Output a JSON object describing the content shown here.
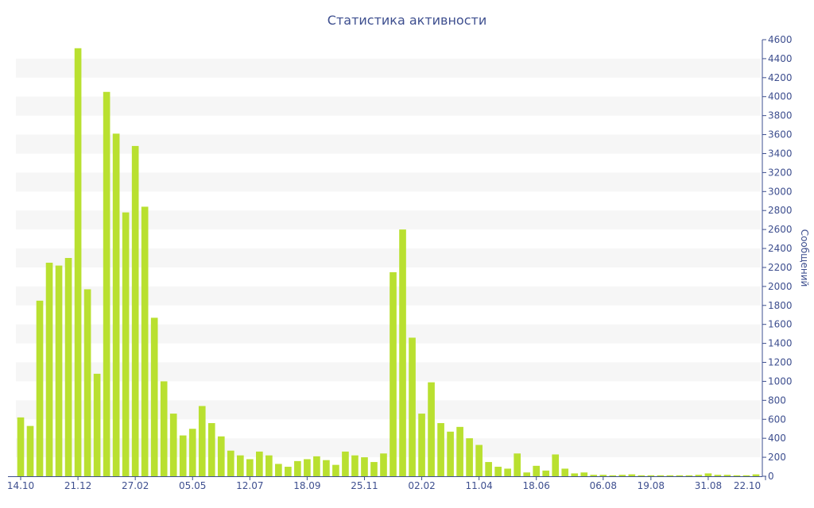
{
  "chart_data": {
    "type": "bar",
    "title": "Статистика активности",
    "xlabel": "",
    "ylabel": "Сообщений",
    "ylim": [
      0,
      4600
    ],
    "yticks": [
      0,
      200,
      400,
      600,
      800,
      1000,
      1200,
      1400,
      1600,
      1800,
      2000,
      2200,
      2400,
      2600,
      2800,
      3000,
      3200,
      3400,
      3600,
      3800,
      4000,
      4200,
      4400,
      4600
    ],
    "x_tick_labels": [
      {
        "label": "14.10",
        "index": 0
      },
      {
        "label": "21.12",
        "index": 6
      },
      {
        "label": "27.02",
        "index": 12
      },
      {
        "label": "05.05",
        "index": 18
      },
      {
        "label": "12.07",
        "index": 24
      },
      {
        "label": "18.09",
        "index": 30
      },
      {
        "label": "25.11",
        "index": 36
      },
      {
        "label": "02.02",
        "index": 42
      },
      {
        "label": "11.04",
        "index": 48
      },
      {
        "label": "18.06",
        "index": 54
      },
      {
        "label": "06.08",
        "index": 61
      },
      {
        "label": "19.08",
        "index": 66
      },
      {
        "label": "31.08",
        "index": 72
      },
      {
        "label": "22.10",
        "index": 78
      }
    ],
    "values": [
      620,
      530,
      1850,
      2250,
      2220,
      2300,
      4510,
      1970,
      1080,
      4050,
      3610,
      2780,
      3480,
      2840,
      1670,
      1000,
      660,
      430,
      500,
      740,
      560,
      420,
      270,
      220,
      180,
      260,
      220,
      130,
      100,
      160,
      180,
      210,
      170,
      120,
      260,
      220,
      200,
      150,
      240,
      2150,
      2600,
      1460,
      660,
      990,
      560,
      470,
      520,
      400,
      330,
      150,
      100,
      80,
      240,
      40,
      110,
      60,
      230,
      80,
      30,
      40,
      15,
      15,
      10,
      15,
      20,
      10,
      10,
      10,
      10,
      10,
      10,
      15,
      30,
      15,
      15,
      10,
      10,
      20
    ],
    "colors": {
      "bar": "#b9e030",
      "text": "#3e4f8f",
      "band": "#f6f6f6",
      "axis": "#3e4f8f"
    },
    "grid": "alternating-bands",
    "legend": "none"
  }
}
